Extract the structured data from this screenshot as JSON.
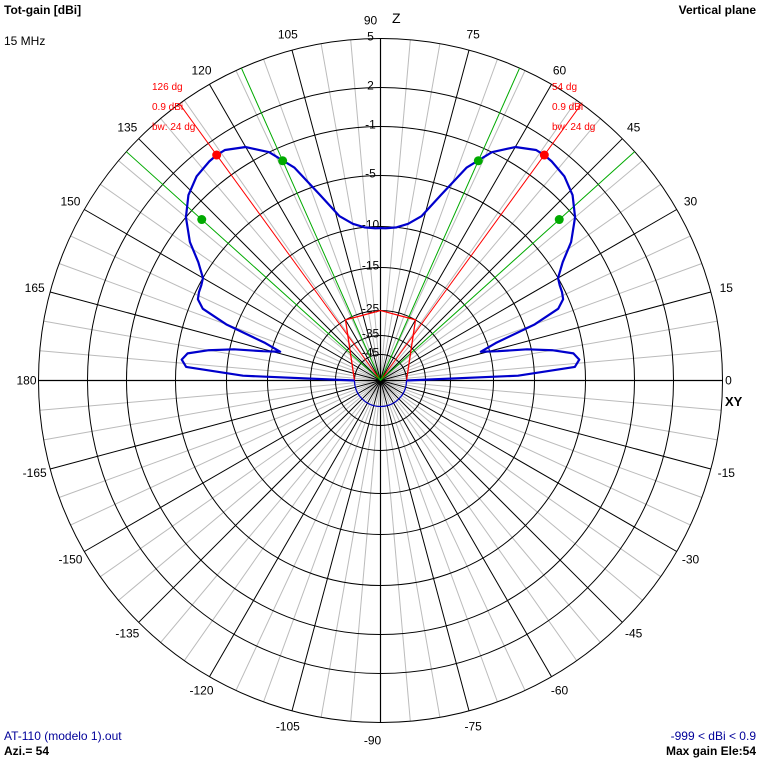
{
  "header": {
    "title": "Tot-gain [dBi]",
    "frequency": "15 MHz",
    "plane": "Vertical plane"
  },
  "footer": {
    "filename": "AT-110 (modelo 1).out",
    "azimuth": "Azi.= 54",
    "range": "-999 < dBi < 0.9",
    "max_gain": "Max gain Ele:54"
  },
  "axis_labels": {
    "top": "Z",
    "right": "XY"
  },
  "colors": {
    "pattern": "#0000cc",
    "max_marker": "#ff0000",
    "halfpower_marker": "#00aa00",
    "grid": "#000000",
    "minor_grid": "#bbbbbb"
  },
  "chart_data": {
    "type": "polar-line",
    "angle_unit": "degrees elevation",
    "angle_ticks": [
      0,
      15,
      30,
      45,
      60,
      75,
      90,
      105,
      120,
      135,
      150,
      165,
      180,
      -165,
      -150,
      -135,
      -120,
      -105,
      -90,
      -75,
      -60,
      -45,
      -30,
      -15
    ],
    "radial_ticks": [
      5,
      2,
      -1,
      -5,
      -10,
      -15,
      -25,
      -35,
      -45
    ],
    "radial_range": [
      -999,
      0.9
    ],
    "series": [
      {
        "elevation_deg": [
          0,
          2,
          4,
          6,
          8,
          10,
          12,
          14,
          16,
          18,
          20,
          22,
          24,
          26,
          28,
          30,
          33,
          36,
          40,
          44,
          48,
          52,
          54,
          56,
          60,
          64,
          68,
          72,
          76,
          80,
          84,
          88,
          90
        ],
        "gain_dbi": [
          -45,
          -12,
          -6,
          -5.5,
          -6,
          -8,
          -10.5,
          -14,
          -17,
          -14,
          -9,
          -6.3,
          -5.5,
          -5.3,
          -5.2,
          -5,
          -4,
          -2.5,
          -1,
          0,
          0.6,
          0.85,
          0.9,
          0.85,
          0.2,
          -1,
          -3,
          -6,
          -8.5,
          -9.5,
          -10,
          -10.2,
          -10.2
        ]
      }
    ],
    "markers": {
      "max_gain": [
        {
          "angle": 54,
          "gain": 0.9
        },
        {
          "angle": 126,
          "gain": 0.9
        }
      ],
      "half_power": [
        {
          "angle": 42,
          "gain": -2.1
        },
        {
          "angle": 66,
          "gain": -2.1
        },
        {
          "angle": 114,
          "gain": -2.1
        },
        {
          "angle": 138,
          "gain": -2.1
        }
      ]
    },
    "annotations": {
      "right": [
        "54 dg",
        "0.9 dBi",
        "bw: 24 dg"
      ],
      "left": [
        "126 dg",
        "0.9 dBi",
        "bw: 24 dg"
      ]
    },
    "inner_pattern": {
      "elevation_deg": [
        0,
        60,
        90
      ],
      "radial_level_db": [
        -45,
        -25,
        -25
      ]
    }
  }
}
